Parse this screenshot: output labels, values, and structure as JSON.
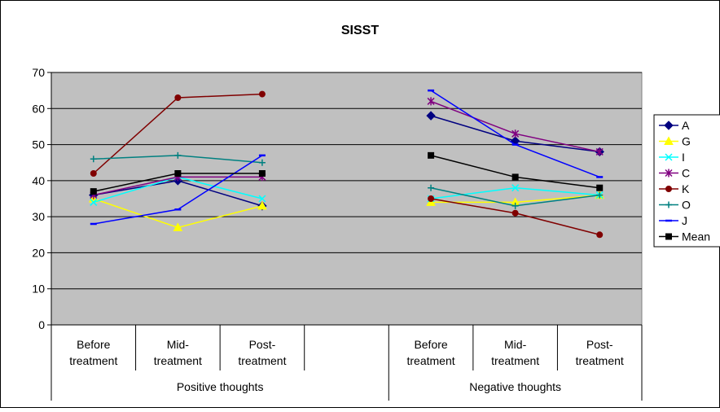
{
  "chart_data": {
    "type": "line",
    "title": "SISST",
    "xlabel": "",
    "ylabel": "",
    "ylim": [
      0,
      70
    ],
    "yticks": [
      0,
      10,
      20,
      30,
      40,
      50,
      60,
      70
    ],
    "grid": true,
    "legend_position": "right",
    "categories": [
      "Before treatment",
      "Mid-treatment",
      "Post-treatment",
      "",
      "Before treatment",
      "Mid-treatment",
      "Post-treatment"
    ],
    "category_lines": [
      [
        "Before",
        "treatment"
      ],
      [
        "Mid-",
        "treatment"
      ],
      [
        "Post-",
        "treatment"
      ],
      [
        "",
        ""
      ],
      [
        "Before",
        "treatment"
      ],
      [
        "Mid-",
        "treatment"
      ],
      [
        "Post-",
        "treatment"
      ]
    ],
    "groups": [
      {
        "label": "Positive thoughts",
        "span": [
          0,
          3
        ]
      },
      {
        "label": "Negative thoughts",
        "span": [
          4,
          6
        ]
      }
    ],
    "series": [
      {
        "name": "A",
        "color": "#000080",
        "marker": "diamond",
        "values": [
          36,
          40,
          33,
          null,
          58,
          51,
          48
        ]
      },
      {
        "name": "G",
        "color": "#FFFF00",
        "marker": "triangle",
        "values": [
          35,
          27,
          33,
          null,
          34,
          34,
          36
        ]
      },
      {
        "name": "I",
        "color": "#00FFFF",
        "marker": "x",
        "values": [
          34,
          41,
          35,
          null,
          35,
          38,
          36
        ]
      },
      {
        "name": "C",
        "color": "#800080",
        "marker": "star",
        "values": [
          36,
          41,
          41,
          null,
          62,
          53,
          48
        ]
      },
      {
        "name": "K",
        "color": "#800000",
        "marker": "circle",
        "values": [
          42,
          63,
          64,
          null,
          35,
          31,
          25
        ]
      },
      {
        "name": "O",
        "color": "#008080",
        "marker": "plus",
        "values": [
          46,
          47,
          45,
          null,
          38,
          33,
          36
        ]
      },
      {
        "name": "J",
        "color": "#0000FF",
        "marker": "dash",
        "values": [
          28,
          32,
          47,
          null,
          65,
          50,
          41
        ]
      },
      {
        "name": "Mean",
        "color": "#000000",
        "marker": "square",
        "values": [
          37,
          42,
          42,
          null,
          47,
          41,
          38
        ]
      }
    ]
  }
}
